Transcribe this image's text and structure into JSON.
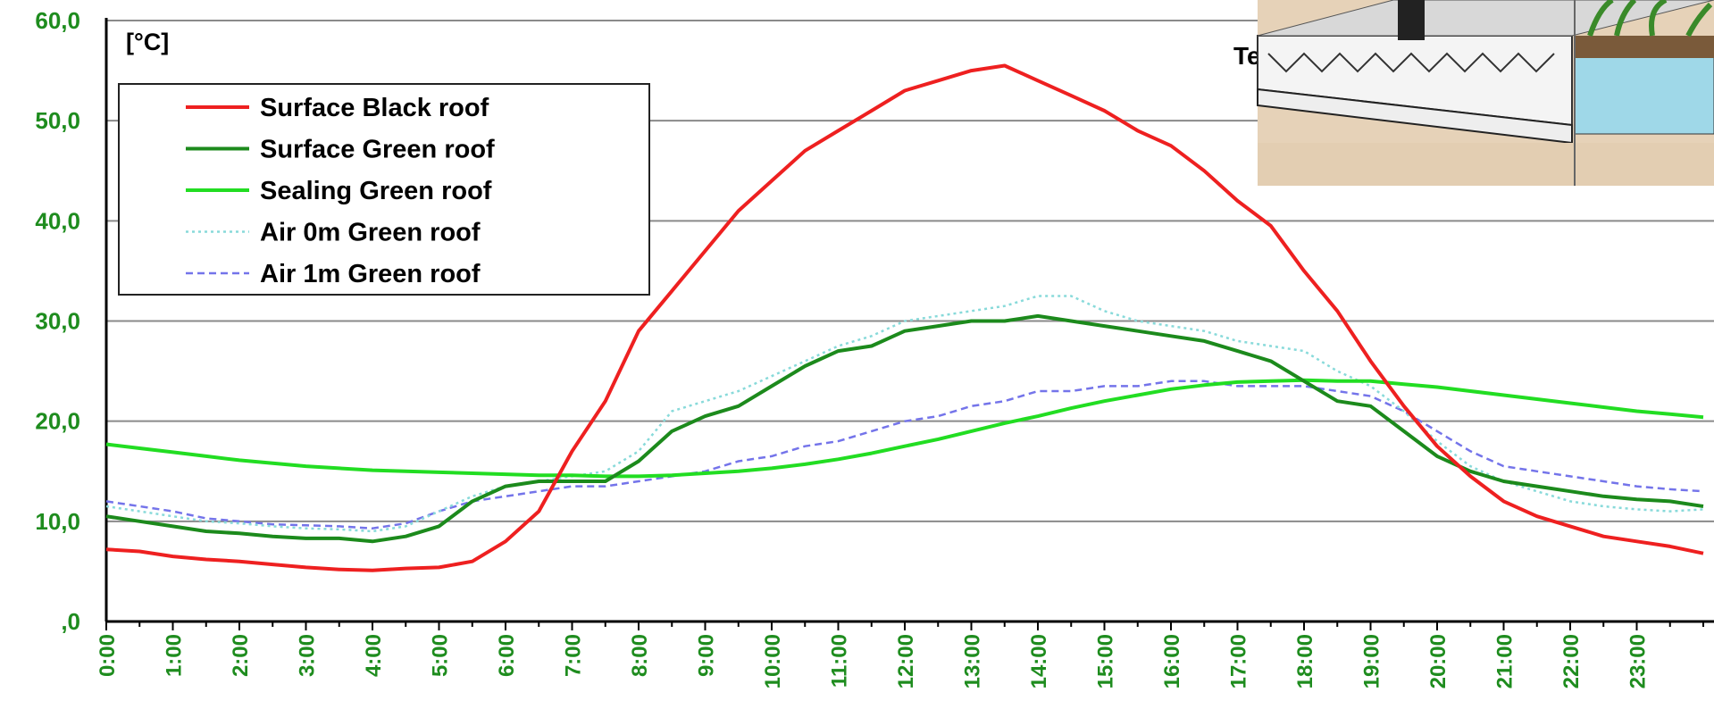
{
  "chart_data": {
    "type": "line",
    "title": "Te",
    "y_label": "[°C]",
    "categories": [
      "0:00",
      null,
      "1:00",
      null,
      "2:00",
      null,
      "3:00",
      null,
      "4:00",
      null,
      "5:00",
      null,
      "6:00",
      null,
      "7:00",
      null,
      "8:00",
      null,
      "9:00",
      null,
      "10:00",
      null,
      "11:00",
      null,
      "12:00",
      null,
      "13:00",
      null,
      "14:00",
      null,
      "15:00",
      null,
      "16:00",
      null,
      "17:00",
      null,
      "18:00",
      null,
      "19:00",
      null,
      "20:00",
      null,
      "21:00",
      null,
      "22:00",
      null,
      "23:00",
      null,
      null
    ],
    "series": [
      {
        "name": "Surface Black roof",
        "color": "#ee2020",
        "style": "solid",
        "values": [
          7.2,
          7.0,
          6.5,
          6.2,
          6.0,
          5.7,
          5.4,
          5.2,
          5.1,
          5.3,
          5.4,
          6.0,
          8.0,
          11.0,
          17,
          22,
          29,
          33,
          37,
          41,
          44,
          47,
          49,
          51,
          53,
          54,
          55,
          55.5,
          54,
          52.5,
          51,
          49,
          47.5,
          45,
          42,
          39.5,
          35,
          31,
          26,
          21.5,
          17.5,
          14.5,
          12,
          10.5,
          9.5,
          8.5,
          8.0,
          7.5,
          6.8
        ]
      },
      {
        "name": "Surface Green roof",
        "color": "#1c8a1c",
        "style": "solid",
        "values": [
          10.5,
          10.0,
          9.5,
          9.0,
          8.8,
          8.5,
          8.3,
          8.3,
          8.0,
          8.5,
          9.5,
          12,
          13.5,
          14,
          14,
          14,
          16,
          19,
          20.5,
          21.5,
          23.5,
          25.5,
          27,
          27.5,
          29,
          29.5,
          30,
          30,
          30.5,
          30,
          29.5,
          29,
          28.5,
          28,
          27,
          26,
          24,
          22,
          21.5,
          19,
          16.5,
          15,
          14,
          13.5,
          13,
          12.5,
          12.2,
          12,
          11.5
        ]
      },
      {
        "name": "Sealing Green roof",
        "color": "#22dd22",
        "style": "solid",
        "values": [
          17.7,
          17.3,
          16.9,
          16.5,
          16.1,
          15.8,
          15.5,
          15.3,
          15.1,
          15.0,
          14.9,
          14.8,
          14.7,
          14.6,
          14.6,
          14.5,
          14.5,
          14.6,
          14.8,
          15.0,
          15.3,
          15.7,
          16.2,
          16.8,
          17.5,
          18.2,
          19.0,
          19.8,
          20.5,
          21.3,
          22.0,
          22.6,
          23.2,
          23.6,
          23.9,
          24.0,
          24.1,
          24.0,
          24.0,
          23.7,
          23.4,
          23.0,
          22.6,
          22.2,
          21.8,
          21.4,
          21.0,
          20.7,
          20.4
        ]
      },
      {
        "name": "Air 0m Green roof",
        "color": "#88dada",
        "style": "dotted",
        "values": [
          11.5,
          11.0,
          10.5,
          10,
          9.8,
          9.5,
          9.3,
          9.2,
          9.0,
          9.5,
          11,
          12.5,
          13.5,
          14,
          14.5,
          15,
          17,
          21,
          22,
          23,
          24.5,
          26,
          27.5,
          28.5,
          30,
          30.5,
          31,
          31.5,
          32.5,
          32.5,
          31,
          30,
          29.5,
          29,
          28,
          27.5,
          27,
          25,
          23.5,
          21,
          18,
          15.5,
          14,
          13,
          12,
          11.5,
          11.2,
          11,
          11.2
        ]
      },
      {
        "name": "Air 1m Green roof",
        "color": "#7474ea",
        "style": "dashed",
        "values": [
          12,
          11.5,
          11,
          10.3,
          10,
          9.7,
          9.6,
          9.5,
          9.3,
          9.8,
          11,
          12,
          12.5,
          13,
          13.5,
          13.5,
          14,
          14.5,
          15,
          16,
          16.5,
          17.5,
          18,
          19,
          20,
          20.5,
          21.5,
          22,
          23,
          23,
          23.5,
          23.5,
          24,
          24,
          23.5,
          23.5,
          23.5,
          23,
          22.5,
          21,
          19,
          17,
          15.5,
          15,
          14.5,
          14,
          13.5,
          13.2,
          13
        ]
      }
    ],
    "ylim": [
      0,
      60
    ],
    "yticks": [
      {
        "value": 0,
        "label": ",0"
      },
      {
        "value": 10,
        "label": "10,0"
      },
      {
        "value": 20,
        "label": "20,0"
      },
      {
        "value": 30,
        "label": "30,0"
      },
      {
        "value": 40,
        "label": "40,0"
      },
      {
        "value": 50,
        "label": "50,0"
      },
      {
        "value": 60,
        "label": "60,0"
      }
    ],
    "grid": true,
    "legend": "upper-left"
  }
}
